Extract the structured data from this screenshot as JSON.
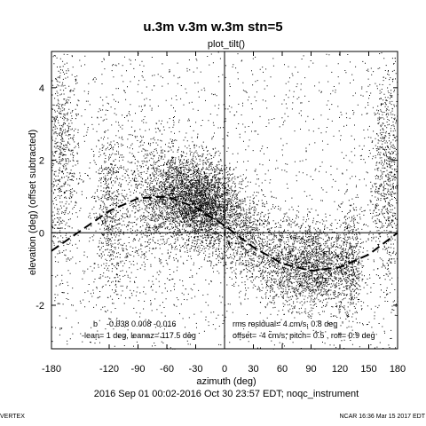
{
  "chart_data": {
    "type": "scatter",
    "title": "u.3m v.3m w.3m stn=5",
    "subtitle": "plot_tilt()",
    "xlabel": "azimuth (deg)",
    "ylabel": "elevation (deg)  (offset subtracted)",
    "xlim": [
      -180,
      180
    ],
    "ylim": [
      -3.2,
      5
    ],
    "xticks": [
      -180,
      -120,
      -90,
      -60,
      -30,
      0,
      30,
      60,
      90,
      120,
      150,
      180
    ],
    "yticks": [
      -2,
      0,
      2,
      4
    ],
    "grid": false,
    "reference_lines": {
      "x": 0,
      "y": 0
    },
    "fit_curve": {
      "style": "dashed",
      "x": [
        -180,
        -150,
        -120,
        -90,
        -60,
        -30,
        0,
        30,
        60,
        90,
        120,
        150,
        180
      ],
      "y": [
        -0.5,
        0.05,
        0.6,
        0.95,
        1.0,
        0.7,
        0.2,
        -0.4,
        -0.85,
        -1.05,
        -0.95,
        -0.6,
        0.0
      ]
    },
    "scatter_clusters": [
      {
        "x": -170,
        "y": 2.0,
        "sx": 10,
        "sy": 1.5,
        "n": 700
      },
      {
        "x": -120,
        "y": 0.5,
        "sx": 8,
        "sy": 1.2,
        "n": 600
      },
      {
        "x": -45,
        "y": 1.0,
        "sx": 20,
        "sy": 0.6,
        "n": 2200
      },
      {
        "x": -15,
        "y": 0.7,
        "sx": 15,
        "sy": 0.6,
        "n": 1600
      },
      {
        "x": 20,
        "y": 0.0,
        "sx": 15,
        "sy": 0.6,
        "n": 700
      },
      {
        "x": 60,
        "y": -0.8,
        "sx": 18,
        "sy": 0.6,
        "n": 900
      },
      {
        "x": 95,
        "y": -0.9,
        "sx": 15,
        "sy": 0.6,
        "n": 1200
      },
      {
        "x": 130,
        "y": -0.9,
        "sx": 8,
        "sy": 0.8,
        "n": 600
      },
      {
        "x": 170,
        "y": 1.5,
        "sx": 10,
        "sy": 1.5,
        "n": 900
      },
      {
        "x": -80,
        "y": 0.8,
        "sx": 20,
        "sy": 1.3,
        "n": 600
      }
    ],
    "annotations": {
      "b_label": "b",
      "b_values": "-0.038   0.008  -0.016",
      "lean": "-lean= 1 deg, leanaz= 117.5 deg",
      "rms": "rms residual= 4 cm/s, 0.8 deg",
      "offset": "offset= -4 cm/s; pitch= 0.5 , roll= 0.9 deg"
    },
    "date_range": "2016 Sep 01 00:02-2016 Oct 30 23:57 EDT; noqc_instrument",
    "footer_left": "VERTEX",
    "footer_right": "NCAR 16:36 Mar 15 2017 EDT"
  }
}
